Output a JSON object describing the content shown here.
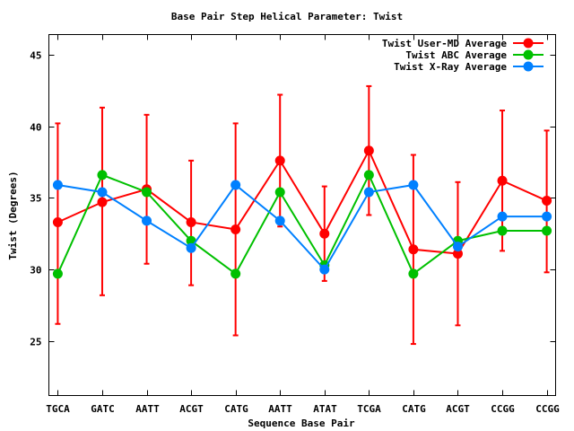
{
  "chart_data": {
    "type": "line",
    "title": "Base Pair Step Helical Parameter: Twist",
    "xlabel": "Sequence Base Pair",
    "ylabel": "Twist (Degrees)",
    "categories": [
      "TGCA",
      "GATC",
      "AATT",
      "ACGT",
      "CATG",
      "AATT",
      "ATAT",
      "TCGA",
      "CATG",
      "ACGT",
      "CCGG",
      "CCGG"
    ],
    "ylim": [
      21.2,
      46.4
    ],
    "yticks": [
      25,
      30,
      35,
      40,
      45
    ],
    "grid": false,
    "legend_position": "top-right",
    "series": [
      {
        "name": "Twist User-MD Average",
        "color": "#ff0000",
        "values": [
          33.3,
          34.7,
          35.6,
          33.3,
          32.8,
          37.6,
          32.5,
          38.3,
          31.4,
          31.1,
          36.2,
          34.8
        ],
        "err_high": [
          40.2,
          41.3,
          40.8,
          37.6,
          40.2,
          42.2,
          35.8,
          42.8,
          38.0,
          36.1,
          41.1,
          39.7
        ],
        "err_low": [
          26.2,
          28.2,
          30.4,
          28.9,
          25.4,
          33.0,
          29.2,
          33.8,
          24.8,
          26.1,
          31.3,
          29.8
        ]
      },
      {
        "name": "Twist ABC Average",
        "color": "#00c000",
        "values": [
          29.7,
          36.6,
          35.4,
          32.0,
          29.7,
          35.4,
          30.3,
          36.6,
          29.7,
          32.0,
          32.7,
          32.7
        ]
      },
      {
        "name": "Twist X-Ray Average",
        "color": "#0080ff",
        "values": [
          35.9,
          35.4,
          33.4,
          31.5,
          35.9,
          33.4,
          30.0,
          35.4,
          35.9,
          31.6,
          33.7,
          33.7
        ]
      }
    ]
  }
}
